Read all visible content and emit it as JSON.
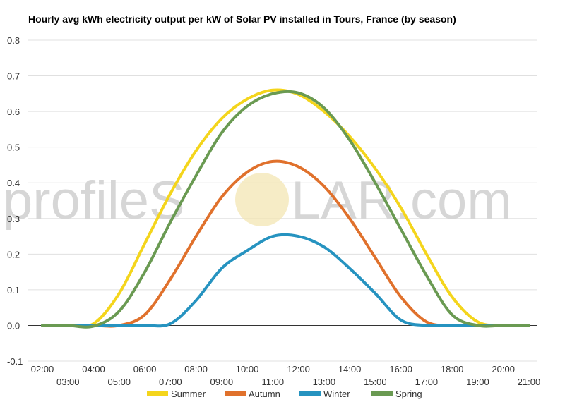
{
  "watermark": {
    "left": "profileS",
    "right": "LAR.com"
  },
  "chart_data": {
    "type": "line",
    "title": "Hourly avg kWh electricity output per kW of Solar PV installed in Tours, France (by season)",
    "xlabel": "",
    "ylabel": "",
    "ylim": [
      -0.1,
      0.8
    ],
    "yticks": [
      "-0.1",
      "0.0",
      "0.1",
      "0.2",
      "0.3",
      "0.4",
      "0.5",
      "0.6",
      "0.7",
      "0.8"
    ],
    "x": [
      "02:00",
      "03:00",
      "04:00",
      "05:00",
      "06:00",
      "07:00",
      "08:00",
      "09:00",
      "10:00",
      "11:00",
      "12:00",
      "13:00",
      "14:00",
      "15:00",
      "16:00",
      "17:00",
      "18:00",
      "19:00",
      "20:00",
      "21:00"
    ],
    "grid": true,
    "legend": "bottom",
    "series": [
      {
        "name": "Summer",
        "color": "#f4d51c",
        "values": [
          0.0,
          0.0,
          0.005,
          0.09,
          0.23,
          0.37,
          0.49,
          0.58,
          0.635,
          0.66,
          0.648,
          0.6,
          0.53,
          0.44,
          0.33,
          0.2,
          0.08,
          0.01,
          0.0,
          0.0
        ]
      },
      {
        "name": "Autumn",
        "color": "#e0712c",
        "values": [
          0.0,
          0.0,
          0.0,
          0.0,
          0.03,
          0.13,
          0.25,
          0.36,
          0.43,
          0.46,
          0.445,
          0.39,
          0.3,
          0.19,
          0.08,
          0.01,
          0.0,
          0.0,
          0.0,
          0.0
        ]
      },
      {
        "name": "Winter",
        "color": "#2693c0",
        "values": [
          0.0,
          0.0,
          0.0,
          0.0,
          0.0,
          0.005,
          0.07,
          0.16,
          0.21,
          0.25,
          0.25,
          0.22,
          0.16,
          0.09,
          0.015,
          0.0,
          0.0,
          0.0,
          0.0,
          0.0
        ]
      },
      {
        "name": "Spring",
        "color": "#6a9a52",
        "values": [
          0.0,
          0.0,
          -0.002,
          0.04,
          0.15,
          0.29,
          0.42,
          0.54,
          0.615,
          0.65,
          0.652,
          0.61,
          0.52,
          0.4,
          0.27,
          0.14,
          0.03,
          0.0,
          0.0,
          0.0
        ]
      }
    ]
  }
}
